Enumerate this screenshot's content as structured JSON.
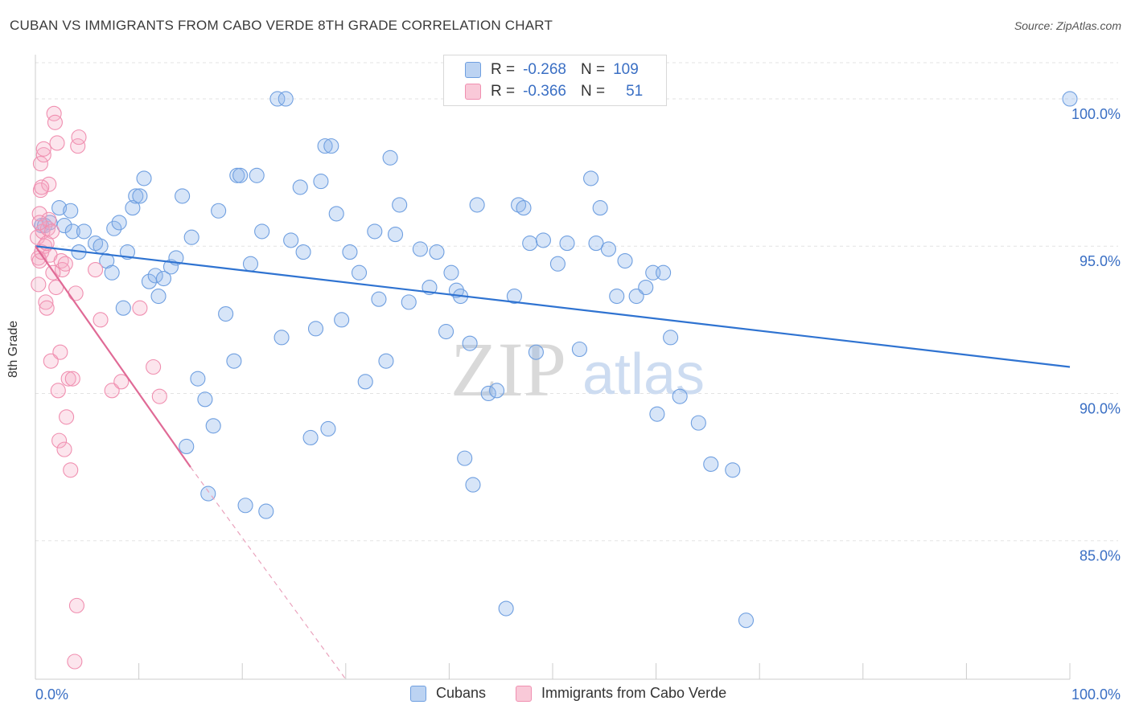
{
  "header": {
    "title": "CUBAN VS IMMIGRANTS FROM CABO VERDE 8TH GRADE CORRELATION CHART",
    "source": "Source: ZipAtlas.com"
  },
  "watermark": {
    "zip": "ZIP",
    "atlas": "atlas"
  },
  "legend": {
    "r_label": "R =",
    "n_label": "N =",
    "rows": [
      {
        "r": "-0.268",
        "n": "109",
        "color": "#6f9fe0"
      },
      {
        "r": "-0.366",
        "n": "51",
        "color": "#f08fb0"
      }
    ]
  },
  "chart_data": {
    "type": "scatter",
    "title": "CUBAN VS IMMIGRANTS FROM CABO VERDE 8TH GRADE CORRELATION CHART",
    "xlabel": "",
    "ylabel": "8th Grade",
    "xlim": [
      0,
      100
    ],
    "ylim": [
      80.3,
      101.5
    ],
    "x_tick_labels": [
      "0.0%",
      "100.0%"
    ],
    "y_ticks": [
      {
        "value": 85,
        "label": "85.0%"
      },
      {
        "value": 90,
        "label": "90.0%"
      },
      {
        "value": 95,
        "label": "95.0%"
      },
      {
        "value": 100,
        "label": "100.0%"
      }
    ],
    "grid": true,
    "legend_position": "bottom",
    "series": [
      {
        "name": "Cubans",
        "color": "#6f9fe0",
        "trend": {
          "x": [
            0,
            100
          ],
          "y": [
            95.0,
            90.9
          ],
          "dashed_to": null
        },
        "points": [
          [
            0.6,
            95.7
          ],
          [
            0.9,
            95.7
          ],
          [
            1.4,
            95.8
          ],
          [
            2.3,
            96.3
          ],
          [
            3.4,
            96.2
          ],
          [
            2.8,
            95.7
          ],
          [
            3.6,
            95.5
          ],
          [
            4.2,
            94.8
          ],
          [
            4.7,
            95.5
          ],
          [
            5.8,
            95.1
          ],
          [
            6.3,
            95.0
          ],
          [
            6.9,
            94.5
          ],
          [
            7.4,
            94.1
          ],
          [
            7.6,
            95.6
          ],
          [
            8.1,
            95.8
          ],
          [
            8.5,
            92.9
          ],
          [
            8.9,
            94.8
          ],
          [
            9.4,
            96.3
          ],
          [
            9.7,
            96.7
          ],
          [
            10.1,
            96.7
          ],
          [
            10.5,
            97.3
          ],
          [
            11.0,
            93.8
          ],
          [
            11.6,
            94.0
          ],
          [
            11.9,
            93.3
          ],
          [
            12.4,
            93.9
          ],
          [
            13.1,
            94.3
          ],
          [
            13.6,
            94.6
          ],
          [
            14.2,
            96.7
          ],
          [
            14.6,
            88.2
          ],
          [
            15.1,
            95.3
          ],
          [
            15.7,
            90.5
          ],
          [
            16.4,
            89.8
          ],
          [
            16.7,
            86.6
          ],
          [
            17.2,
            88.9
          ],
          [
            17.7,
            96.2
          ],
          [
            18.4,
            92.7
          ],
          [
            19.2,
            91.1
          ],
          [
            19.5,
            97.4
          ],
          [
            19.8,
            97.4
          ],
          [
            20.3,
            86.2
          ],
          [
            20.8,
            94.4
          ],
          [
            21.4,
            97.4
          ],
          [
            21.9,
            95.5
          ],
          [
            22.3,
            86.0
          ],
          [
            23.4,
            100.0
          ],
          [
            23.8,
            91.9
          ],
          [
            24.2,
            100.0
          ],
          [
            24.7,
            95.2
          ],
          [
            25.6,
            97.0
          ],
          [
            25.9,
            94.8
          ],
          [
            26.6,
            88.5
          ],
          [
            27.1,
            92.2
          ],
          [
            27.6,
            97.2
          ],
          [
            28.0,
            98.4
          ],
          [
            28.3,
            88.8
          ],
          [
            28.6,
            98.4
          ],
          [
            29.1,
            96.1
          ],
          [
            29.6,
            92.5
          ],
          [
            30.4,
            94.8
          ],
          [
            31.3,
            94.1
          ],
          [
            31.9,
            90.4
          ],
          [
            32.8,
            95.5
          ],
          [
            33.2,
            93.2
          ],
          [
            33.9,
            91.1
          ],
          [
            34.3,
            98.0
          ],
          [
            34.8,
            95.4
          ],
          [
            35.2,
            96.4
          ],
          [
            36.1,
            93.1
          ],
          [
            37.2,
            94.9
          ],
          [
            38.1,
            93.6
          ],
          [
            38.8,
            94.8
          ],
          [
            39.7,
            92.1
          ],
          [
            40.2,
            94.1
          ],
          [
            40.7,
            93.5
          ],
          [
            41.1,
            93.3
          ],
          [
            41.5,
            87.8
          ],
          [
            42.0,
            91.7
          ],
          [
            42.3,
            86.9
          ],
          [
            42.7,
            96.4
          ],
          [
            43.8,
            90.0
          ],
          [
            44.6,
            90.1
          ],
          [
            45.5,
            82.7
          ],
          [
            46.3,
            93.3
          ],
          [
            46.7,
            96.4
          ],
          [
            47.2,
            96.3
          ],
          [
            47.8,
            95.1
          ],
          [
            48.4,
            91.4
          ],
          [
            49.1,
            95.2
          ],
          [
            50.5,
            94.4
          ],
          [
            51.4,
            95.1
          ],
          [
            52.6,
            91.5
          ],
          [
            53.7,
            97.3
          ],
          [
            54.2,
            95.1
          ],
          [
            54.6,
            96.3
          ],
          [
            55.4,
            94.9
          ],
          [
            56.2,
            93.3
          ],
          [
            57.0,
            94.5
          ],
          [
            58.1,
            93.3
          ],
          [
            59.0,
            93.6
          ],
          [
            59.7,
            94.1
          ],
          [
            60.1,
            89.3
          ],
          [
            60.7,
            94.1
          ],
          [
            61.4,
            91.9
          ],
          [
            62.3,
            89.9
          ],
          [
            64.1,
            89.0
          ],
          [
            65.3,
            87.6
          ],
          [
            67.4,
            87.4
          ],
          [
            68.7,
            82.3
          ],
          [
            100.0,
            100.0
          ]
        ]
      },
      {
        "name": "Immigrants from Cabo Verde",
        "color": "#f08fb0",
        "trend": {
          "x": [
            0,
            15
          ],
          "y": [
            95.0,
            87.5
          ],
          "dashed_to": [
            30,
            80.3
          ]
        },
        "points": [
          [
            0.2,
            95.3
          ],
          [
            0.3,
            94.6
          ],
          [
            0.3,
            93.7
          ],
          [
            0.4,
            94.5
          ],
          [
            0.4,
            96.1
          ],
          [
            0.5,
            97.8
          ],
          [
            0.5,
            96.9
          ],
          [
            0.6,
            94.8
          ],
          [
            0.7,
            95.5
          ],
          [
            0.8,
            98.1
          ],
          [
            0.9,
            95.0
          ],
          [
            1.0,
            93.1
          ],
          [
            1.1,
            92.9
          ],
          [
            1.2,
            95.6
          ],
          [
            1.3,
            95.9
          ],
          [
            1.3,
            97.1
          ],
          [
            1.4,
            94.7
          ],
          [
            1.5,
            91.1
          ],
          [
            1.6,
            95.5
          ],
          [
            1.8,
            99.5
          ],
          [
            1.9,
            99.2
          ],
          [
            2.0,
            93.6
          ],
          [
            2.1,
            98.5
          ],
          [
            2.2,
            90.1
          ],
          [
            2.3,
            88.4
          ],
          [
            2.4,
            91.4
          ],
          [
            2.5,
            94.5
          ],
          [
            2.6,
            94.2
          ],
          [
            2.8,
            88.1
          ],
          [
            3.0,
            89.2
          ],
          [
            3.2,
            90.5
          ],
          [
            3.4,
            87.4
          ],
          [
            3.6,
            90.5
          ],
          [
            3.8,
            80.9
          ],
          [
            3.9,
            93.4
          ],
          [
            4.0,
            82.8
          ],
          [
            4.1,
            98.4
          ],
          [
            4.2,
            98.7
          ],
          [
            5.8,
            94.2
          ],
          [
            6.3,
            92.5
          ],
          [
            7.4,
            90.1
          ],
          [
            8.3,
            90.4
          ],
          [
            10.1,
            92.9
          ],
          [
            11.4,
            90.9
          ],
          [
            12.0,
            89.9
          ],
          [
            0.8,
            98.3
          ],
          [
            0.6,
            97.0
          ],
          [
            1.1,
            95.1
          ],
          [
            0.4,
            95.8
          ],
          [
            1.7,
            94.1
          ],
          [
            2.9,
            94.4
          ]
        ]
      }
    ]
  },
  "legend_bottom": {
    "items": [
      {
        "label": "Cubans",
        "color": "#6f9fe0"
      },
      {
        "label": "Immigrants from Cabo Verde",
        "color": "#f08fb0"
      }
    ]
  }
}
